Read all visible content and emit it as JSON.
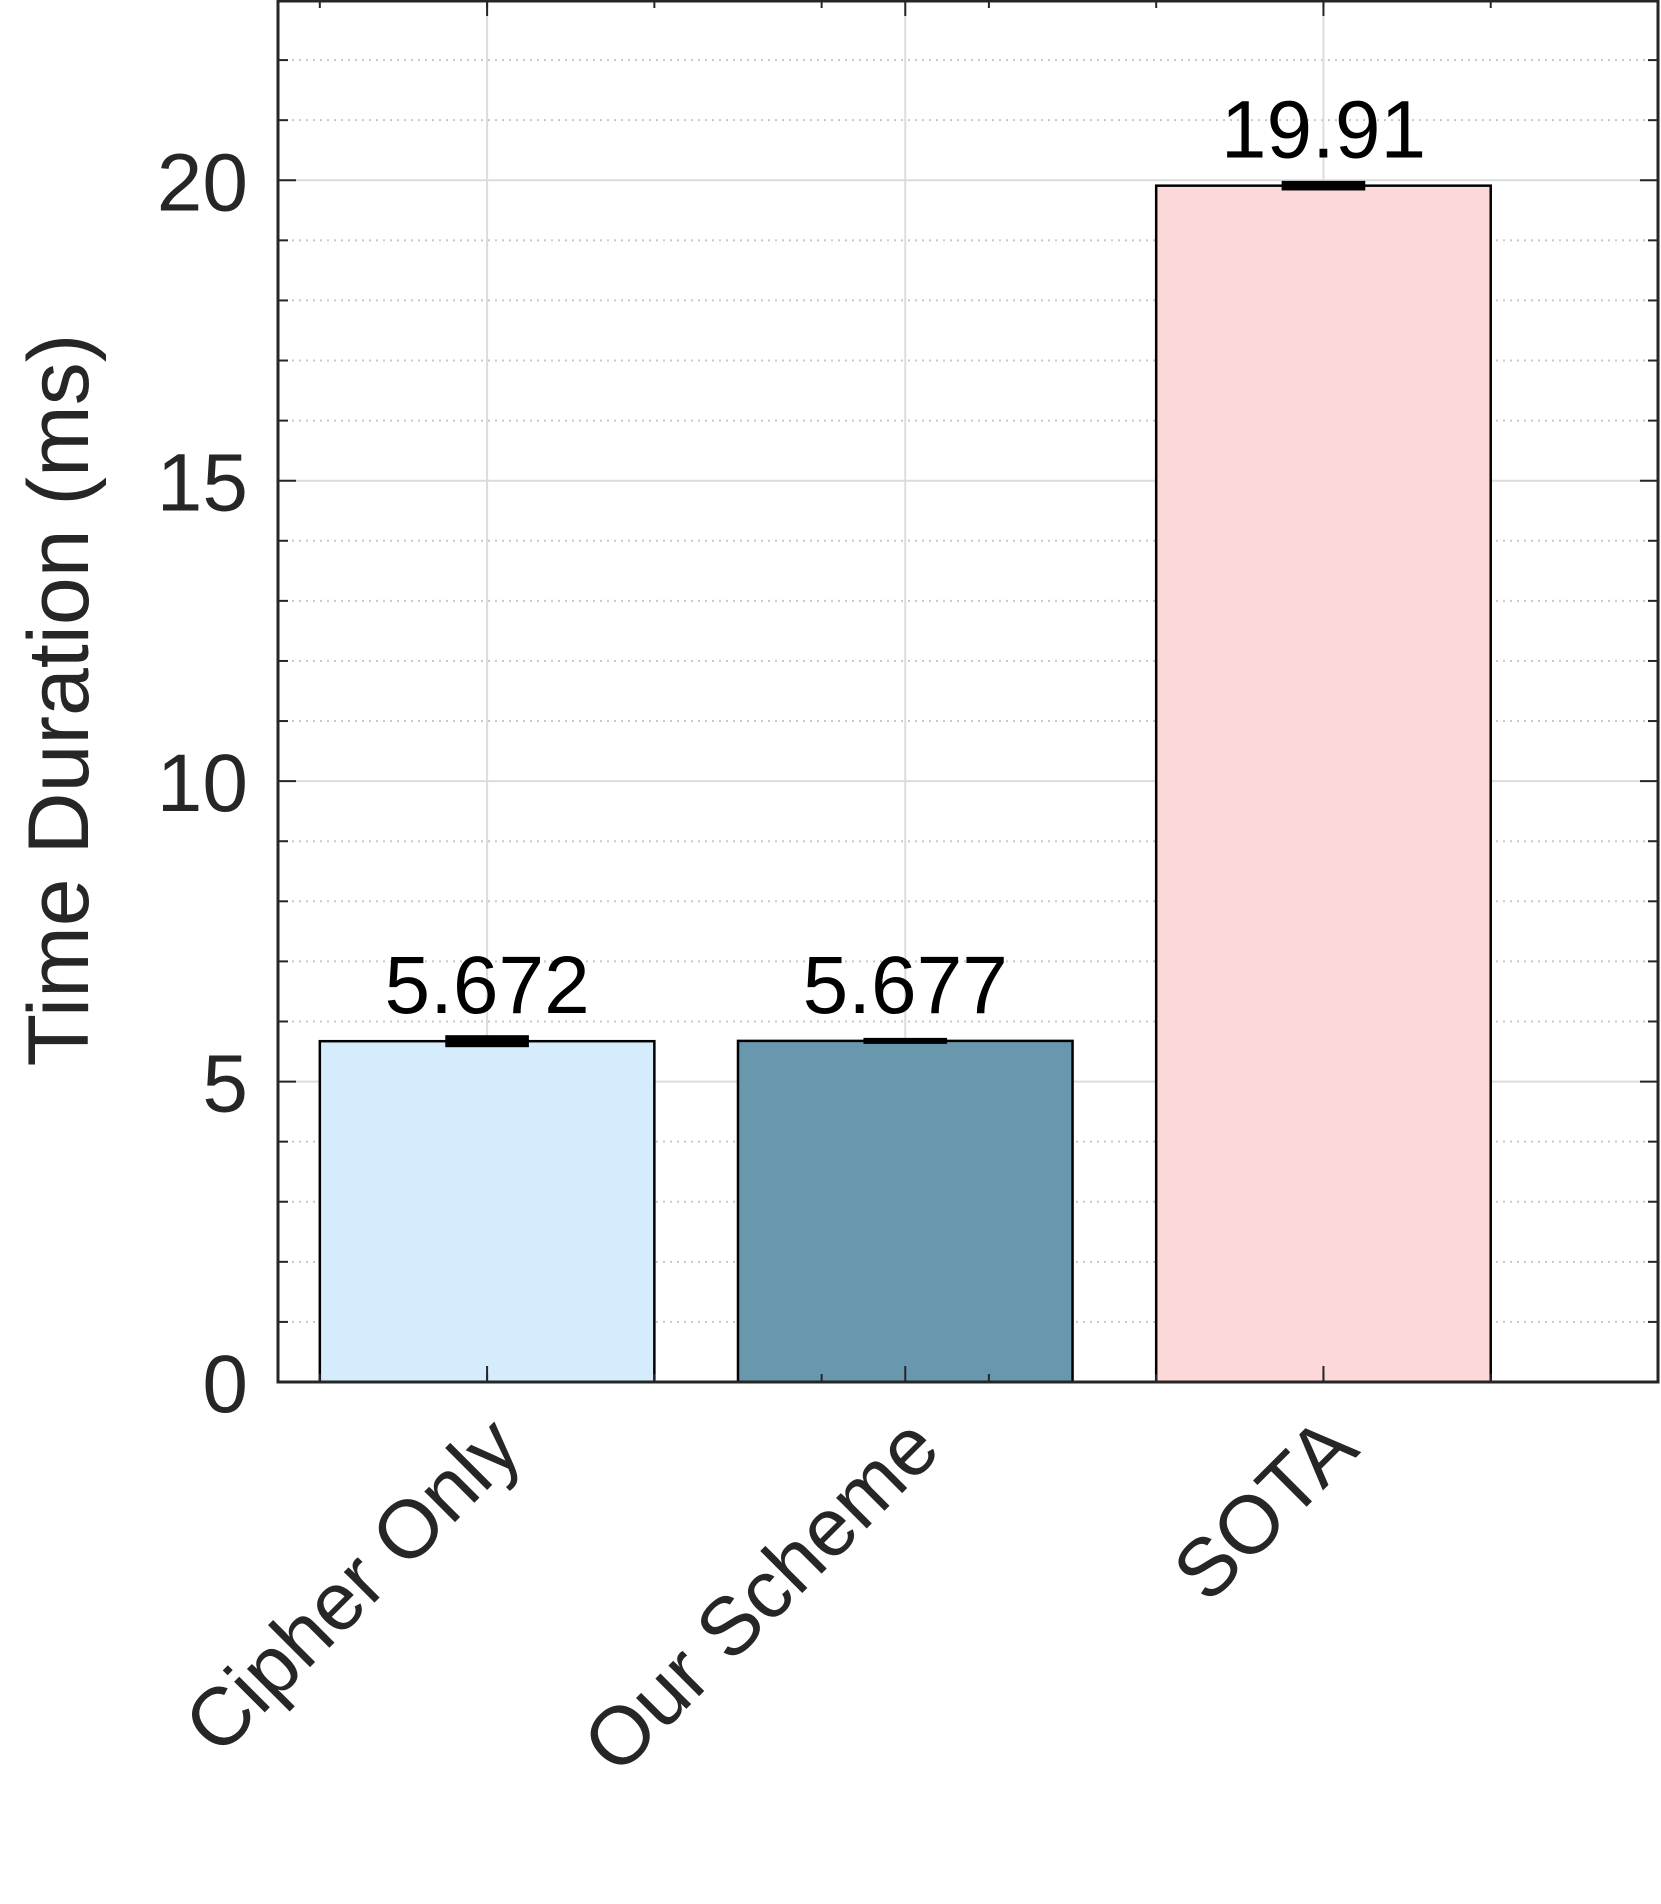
{
  "chart_data": {
    "type": "bar",
    "categories": [
      "Cipher Only",
      "Our Scheme",
      "SOTA"
    ],
    "values": [
      5.672,
      5.677,
      19.91
    ],
    "data_labels": [
      "5.672",
      "5.677",
      "19.91"
    ],
    "error_bars": [
      0.1,
      0.04,
      0.08
    ],
    "colors": [
      "#d4ecfc",
      "#6998ae",
      "#fdd8d8"
    ],
    "title": "",
    "xlabel": "",
    "ylabel": "Time Duration (ms)",
    "ylim": [
      0,
      23
    ],
    "yticks": [
      0,
      5,
      10,
      15,
      20
    ],
    "ytick_labels": [
      "0",
      "5",
      "10",
      "15",
      "20"
    ],
    "grid": true,
    "minor_grid": true,
    "legend": "none"
  }
}
